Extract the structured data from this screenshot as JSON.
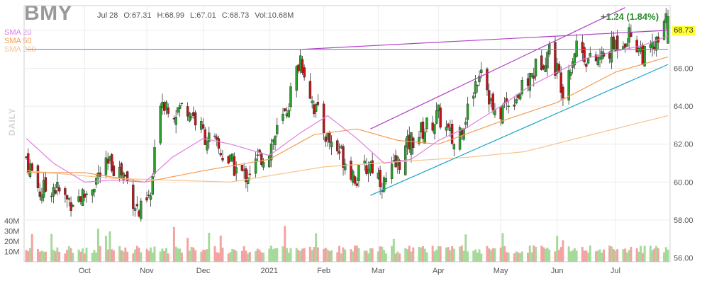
{
  "header": {
    "ticker": "BMY",
    "date": "Jul 28",
    "open": "O:67.31",
    "high": "H:68.99",
    "low": "L:67.01",
    "close": "C:68.73",
    "volume": "Vol:10.68M",
    "change": "+1.24 (1.84%)"
  },
  "legend": {
    "sma20": "SMA 20",
    "sma50": "SMA 50",
    "sma200": "SMA 200",
    "period": "DAILY"
  },
  "last_price_label": "68.73",
  "colors": {
    "up": "#2ca02c",
    "down": "#c0161a",
    "vol_up": "#a6d99a",
    "vol_down": "#f4a3a3",
    "sma20": "#e17ee0",
    "sma50": "#f59b4f",
    "sma200": "#f6c58f",
    "trend_purple": "#b03fc8",
    "trend_blue": "#1aa3c8",
    "horizontal": "#7a7ae0"
  },
  "chart_data": {
    "type": "candlestick",
    "x_tick_labels": [
      "Oct",
      "Nov",
      "Dec",
      "2021",
      "Feb",
      "Mar",
      "Apr",
      "May",
      "Jun",
      "Jul"
    ],
    "x_tick_dates": [
      "2020-10-01",
      "2020-11-02",
      "2020-12-01",
      "2021-01-04",
      "2021-02-01",
      "2021-03-01",
      "2021-04-01",
      "2021-05-03",
      "2021-06-01",
      "2021-07-01"
    ],
    "y_ticks": [
      56,
      58,
      60,
      62,
      64,
      66,
      68
    ],
    "y_tick_labels": [
      "56.00",
      "58.00",
      "60.00",
      "62.00",
      "64.00",
      "66.00",
      "68.00"
    ],
    "ylim": [
      55.8,
      69.3
    ],
    "volume_ticks": [
      "10M",
      "20M",
      "30M",
      "40M"
    ],
    "volume_tick_values": [
      10,
      20,
      30,
      40
    ],
    "volume_unit": "M",
    "series_closes": [
      {
        "date": "2020-09-01",
        "close": 61.3
      },
      {
        "date": "2020-09-08",
        "close": 59.5
      },
      {
        "date": "2020-09-15",
        "close": 59.8
      },
      {
        "date": "2020-09-22",
        "close": 59.0
      },
      {
        "date": "2020-10-01",
        "close": 59.3
      },
      {
        "date": "2020-10-08",
        "close": 60.3
      },
      {
        "date": "2020-10-15",
        "close": 61.0
      },
      {
        "date": "2020-10-22",
        "close": 60.3
      },
      {
        "date": "2020-10-29",
        "close": 58.3
      },
      {
        "date": "2020-11-04",
        "close": 59.2
      },
      {
        "date": "2020-11-09",
        "close": 64.5
      },
      {
        "date": "2020-11-16",
        "close": 63.8
      },
      {
        "date": "2020-11-23",
        "close": 64.0
      },
      {
        "date": "2020-12-01",
        "close": 62.6
      },
      {
        "date": "2020-12-08",
        "close": 61.8
      },
      {
        "date": "2020-12-15",
        "close": 61.0
      },
      {
        "date": "2020-12-22",
        "close": 60.3
      },
      {
        "date": "2021-01-04",
        "close": 61.8
      },
      {
        "date": "2021-01-12",
        "close": 63.5
      },
      {
        "date": "2021-01-20",
        "close": 66.6
      },
      {
        "date": "2021-01-27",
        "close": 64.0
      },
      {
        "date": "2021-02-03",
        "close": 62.3
      },
      {
        "date": "2021-02-10",
        "close": 61.5
      },
      {
        "date": "2021-02-18",
        "close": 60.2
      },
      {
        "date": "2021-02-25",
        "close": 61.0
      },
      {
        "date": "2021-03-04",
        "close": 59.9
      },
      {
        "date": "2021-03-11",
        "close": 61.0
      },
      {
        "date": "2021-03-18",
        "close": 62.2
      },
      {
        "date": "2021-03-25",
        "close": 62.8
      },
      {
        "date": "2021-04-01",
        "close": 63.5
      },
      {
        "date": "2021-04-09",
        "close": 62.0
      },
      {
        "date": "2021-04-16",
        "close": 63.8
      },
      {
        "date": "2021-04-23",
        "close": 66.3
      },
      {
        "date": "2021-04-30",
        "close": 63.3
      },
      {
        "date": "2021-05-07",
        "close": 64.3
      },
      {
        "date": "2021-05-14",
        "close": 64.8
      },
      {
        "date": "2021-05-21",
        "close": 66.0
      },
      {
        "date": "2021-05-28",
        "close": 67.0
      },
      {
        "date": "2021-06-04",
        "close": 65.0
      },
      {
        "date": "2021-06-11",
        "close": 67.3
      },
      {
        "date": "2021-06-18",
        "close": 66.3
      },
      {
        "date": "2021-06-25",
        "close": 66.6
      },
      {
        "date": "2021-07-02",
        "close": 67.4
      },
      {
        "date": "2021-07-09",
        "close": 67.8
      },
      {
        "date": "2021-07-16",
        "close": 66.6
      },
      {
        "date": "2021-07-23",
        "close": 67.3
      },
      {
        "date": "2021-07-28",
        "close": 68.73
      }
    ],
    "sma20": [
      {
        "date": "2020-09-01",
        "value": 62.3
      },
      {
        "date": "2020-09-15",
        "value": 61.0
      },
      {
        "date": "2020-10-01",
        "value": 60.0
      },
      {
        "date": "2020-10-15",
        "value": 60.1
      },
      {
        "date": "2020-11-01",
        "value": 60.0
      },
      {
        "date": "2020-11-15",
        "value": 61.3
      },
      {
        "date": "2020-12-01",
        "value": 62.3
      },
      {
        "date": "2020-12-15",
        "value": 62.0
      },
      {
        "date": "2021-01-04",
        "value": 61.4
      },
      {
        "date": "2021-01-20",
        "value": 62.6
      },
      {
        "date": "2021-02-03",
        "value": 63.5
      },
      {
        "date": "2021-02-18",
        "value": 62.3
      },
      {
        "date": "2021-03-04",
        "value": 61.0
      },
      {
        "date": "2021-03-18",
        "value": 61.2
      },
      {
        "date": "2021-04-01",
        "value": 62.2
      },
      {
        "date": "2021-04-16",
        "value": 62.9
      },
      {
        "date": "2021-05-03",
        "value": 64.0
      },
      {
        "date": "2021-05-17",
        "value": 65.0
      },
      {
        "date": "2021-06-01",
        "value": 65.8
      },
      {
        "date": "2021-06-15",
        "value": 66.5
      },
      {
        "date": "2021-07-01",
        "value": 66.9
      },
      {
        "date": "2021-07-15",
        "value": 67.2
      },
      {
        "date": "2021-07-28",
        "value": 67.7
      }
    ],
    "sma50": [
      {
        "date": "2020-09-01",
        "value": 60.5
      },
      {
        "date": "2020-10-01",
        "value": 60.5
      },
      {
        "date": "2020-11-01",
        "value": 60.0
      },
      {
        "date": "2020-12-01",
        "value": 60.6
      },
      {
        "date": "2021-01-04",
        "value": 61.2
      },
      {
        "date": "2021-01-27",
        "value": 62.5
      },
      {
        "date": "2021-02-18",
        "value": 62.8
      },
      {
        "date": "2021-03-11",
        "value": 62.2
      },
      {
        "date": "2021-04-01",
        "value": 62.0
      },
      {
        "date": "2021-05-03",
        "value": 63.2
      },
      {
        "date": "2021-06-01",
        "value": 64.2
      },
      {
        "date": "2021-07-01",
        "value": 65.8
      },
      {
        "date": "2021-07-28",
        "value": 66.6
      }
    ],
    "sma200": [
      {
        "date": "2020-09-01",
        "value": 60.6
      },
      {
        "date": "2020-10-15",
        "value": 60.2
      },
      {
        "date": "2020-12-15",
        "value": 60.0
      },
      {
        "date": "2021-02-01",
        "value": 60.8
      },
      {
        "date": "2021-03-15",
        "value": 61.1
      },
      {
        "date": "2021-04-15",
        "value": 61.3
      },
      {
        "date": "2021-05-15",
        "value": 61.6
      },
      {
        "date": "2021-06-15",
        "value": 62.4
      },
      {
        "date": "2021-07-28",
        "value": 63.5
      }
    ],
    "trendlines": [
      {
        "name": "horizontal",
        "points": [
          {
            "date": "2020-09-01",
            "value": 67.0
          },
          {
            "date": "2021-07-28",
            "value": 67.0
          }
        ]
      },
      {
        "name": "upper-purple",
        "points": [
          {
            "date": "2021-01-21",
            "value": 67.0
          },
          {
            "date": "2021-07-28",
            "value": 68.0
          }
        ]
      },
      {
        "name": "channel-top",
        "points": [
          {
            "date": "2021-02-25",
            "value": 62.8
          },
          {
            "date": "2021-07-06",
            "value": 69.2
          }
        ]
      },
      {
        "name": "channel-bottom",
        "points": [
          {
            "date": "2021-02-25",
            "value": 59.3
          },
          {
            "date": "2021-07-28",
            "value": 66.2
          }
        ]
      }
    ],
    "last_close": 68.73
  }
}
